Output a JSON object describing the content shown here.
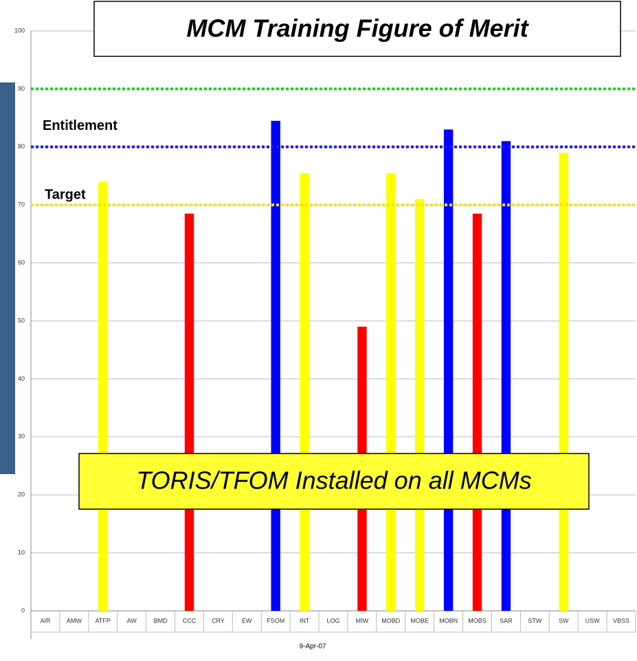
{
  "chart_data": {
    "type": "bar",
    "title": "MCM Training Figure of Merit",
    "annotation": "TORIS/TFOM Installed on all MCMs",
    "x_label": "9-Apr-07",
    "categories": [
      "AIR",
      "AMW",
      "ATFP",
      "AW",
      "BMD",
      "CCC",
      "CRY",
      "EW",
      "FSOM",
      "INT",
      "LOG",
      "MIW",
      "MOBD",
      "MOBE",
      "MOBN",
      "MOBS",
      "SAR",
      "STW",
      "SW",
      "USW",
      "VBSS"
    ],
    "values": [
      null,
      null,
      74,
      null,
      null,
      68.5,
      null,
      null,
      84.5,
      75.5,
      null,
      49,
      75.5,
      71,
      83,
      68.5,
      81,
      null,
      79,
      null,
      null
    ],
    "colors": [
      null,
      null,
      "#ffff00",
      null,
      null,
      "#ff0000",
      null,
      null,
      "#0000ff",
      "#ffff00",
      null,
      "#ff0000",
      "#ffff00",
      "#ffff00",
      "#0000ff",
      "#ff0000",
      "#0000ff",
      null,
      "#ffff00",
      null,
      null
    ],
    "ylim": [
      0,
      100
    ],
    "yticks": [
      0,
      10,
      20,
      30,
      40,
      50,
      60,
      70,
      80,
      90,
      100
    ],
    "grid": true,
    "reference_lines": [
      {
        "value": 90,
        "color": "#22cc22"
      },
      {
        "value": 80,
        "label": "Entitlement",
        "color": "#1a1aff"
      },
      {
        "value": 70,
        "label": "Target",
        "color": "#f2e600"
      }
    ]
  }
}
